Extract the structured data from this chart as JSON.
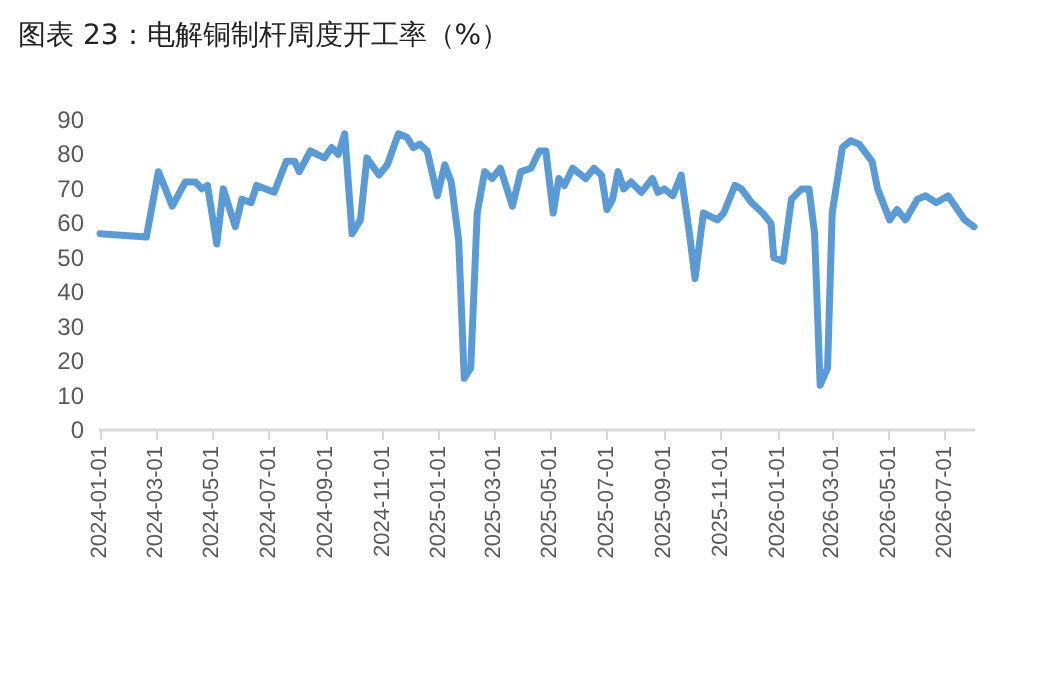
{
  "chart_data": {
    "type": "line",
    "title": "图表 23：电解铜制杆周度开工率（%）",
    "x": [
      "2024-01-01",
      "2024-02-20",
      "2024-03-04",
      "2024-03-19",
      "2024-04-02",
      "2024-04-13",
      "2024-04-20",
      "2024-04-26",
      "2024-05-06",
      "2024-05-13",
      "2024-05-26",
      "2024-06-02",
      "2024-06-12",
      "2024-06-18",
      "2024-07-07",
      "2024-07-20",
      "2024-07-29",
      "2024-08-03",
      "2024-08-15",
      "2024-08-30",
      "2024-09-07",
      "2024-09-14",
      "2024-09-21",
      "2024-09-29",
      "2024-10-08",
      "2024-10-15",
      "2024-10-28",
      "2024-11-06",
      "2024-11-18",
      "2024-11-27",
      "2024-12-04",
      "2024-12-11",
      "2024-12-19",
      "2024-12-30",
      "2025-01-07",
      "2025-01-14",
      "2025-01-22",
      "2025-01-28",
      "2025-02-04",
      "2025-02-11",
      "2025-02-19",
      "2025-02-27",
      "2025-03-08",
      "2025-03-21",
      "2025-03-30",
      "2025-04-10",
      "2025-04-19",
      "2025-04-26",
      "2025-05-04",
      "2025-05-10",
      "2025-05-16",
      "2025-05-25",
      "2025-06-08",
      "2025-06-17",
      "2025-06-25",
      "2025-07-01",
      "2025-07-07",
      "2025-07-13",
      "2025-07-19",
      "2025-07-27",
      "2025-08-07",
      "2025-08-19",
      "2025-08-25",
      "2025-09-01",
      "2025-09-10",
      "2025-09-19",
      "2025-09-28",
      "2025-10-04",
      "2025-10-13",
      "2025-10-28",
      "2025-11-04",
      "2025-11-16",
      "2025-11-23",
      "2025-12-04",
      "2025-12-16",
      "2025-12-25",
      "2025-12-28",
      "2026-01-07",
      "2026-01-16",
      "2026-01-27",
      "2026-02-04",
      "2026-02-10",
      "2026-02-16",
      "2026-02-24",
      "2026-03-01",
      "2026-03-12",
      "2026-03-21",
      "2026-03-30",
      "2026-04-13",
      "2026-04-19",
      "2026-05-02",
      "2026-05-10",
      "2026-05-19",
      "2026-06-01",
      "2026-06-10",
      "2026-06-21",
      "2026-07-04",
      "2026-07-22",
      "2026-08-01"
    ],
    "values": [
      57,
      56,
      75,
      65,
      72,
      72,
      70,
      71,
      54,
      70,
      59,
      67,
      66,
      71,
      69,
      78,
      78,
      75,
      81,
      79,
      82,
      80,
      86,
      57,
      61,
      79,
      74,
      77,
      86,
      85,
      82,
      83,
      81,
      68,
      77,
      72,
      55,
      15,
      18,
      63,
      75,
      73,
      76,
      65,
      75,
      76,
      81,
      81,
      63,
      73,
      71,
      76,
      73,
      76,
      74,
      64,
      67,
      75,
      70,
      72,
      69,
      73,
      69,
      70,
      68,
      74,
      57,
      44,
      63,
      61,
      63,
      71,
      70,
      66,
      63,
      60,
      50,
      49,
      67,
      70,
      70,
      57,
      13,
      18,
      63,
      82,
      84,
      83,
      78,
      70,
      61,
      64,
      61,
      67,
      68,
      66,
      68,
      61,
      59
    ],
    "color": "#5b9bd5",
    "xlim": [
      "2024-01-01",
      "2026-08-01"
    ],
    "xticks": [
      "2024-01-01",
      "2024-03-01",
      "2024-05-01",
      "2024-07-01",
      "2024-09-01",
      "2024-11-01",
      "2025-01-01",
      "2025-03-01",
      "2025-05-01",
      "2025-07-01",
      "2025-09-01",
      "2025-11-01",
      "2026-01-01",
      "2026-03-01",
      "2026-05-01",
      "2026-07-01"
    ],
    "ylim": [
      0,
      90
    ],
    "yticks": [
      0,
      10,
      20,
      30,
      40,
      50,
      60,
      70,
      80,
      90
    ],
    "grid": false,
    "marker": "none",
    "line_style": "solid"
  }
}
